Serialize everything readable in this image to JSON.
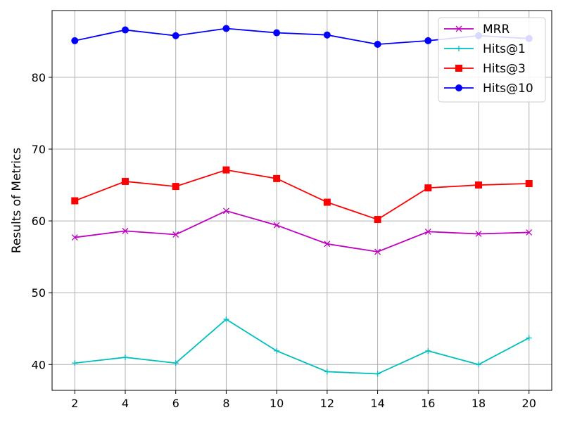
{
  "chart_data": {
    "type": "line",
    "title": "",
    "xlabel": "",
    "ylabel": "Results of Metrics",
    "x": [
      2,
      4,
      6,
      8,
      10,
      12,
      14,
      16,
      18,
      20
    ],
    "xticks": [
      "2",
      "4",
      "6",
      "8",
      "10",
      "12",
      "14",
      "16",
      "18",
      "20"
    ],
    "yticks": [
      "40",
      "50",
      "60",
      "70",
      "80"
    ],
    "xlim": [
      1.1,
      20.9
    ],
    "ylim": [
      36.4,
      89.3
    ],
    "grid": true,
    "legend_position": "top-right",
    "series": [
      {
        "name": "MRR",
        "color": "#bf00bf",
        "marker": "x",
        "values": [
          57.7,
          58.6,
          58.1,
          61.4,
          59.4,
          56.8,
          55.7,
          58.5,
          58.2,
          58.4
        ]
      },
      {
        "name": "Hits@1",
        "color": "#00bfbf",
        "marker": "plus",
        "values": [
          40.2,
          41.0,
          40.2,
          46.3,
          41.9,
          39.0,
          38.7,
          41.9,
          40.0,
          43.7
        ]
      },
      {
        "name": "Hits@3",
        "color": "#ff0000",
        "marker": "square",
        "values": [
          62.8,
          65.5,
          64.8,
          67.1,
          65.9,
          62.6,
          60.2,
          64.6,
          65.0,
          65.2
        ]
      },
      {
        "name": "Hits@10",
        "color": "#0000ff",
        "marker": "circle",
        "values": [
          85.1,
          86.6,
          85.8,
          86.8,
          86.2,
          85.9,
          84.6,
          85.1,
          85.8,
          85.4
        ]
      }
    ]
  }
}
